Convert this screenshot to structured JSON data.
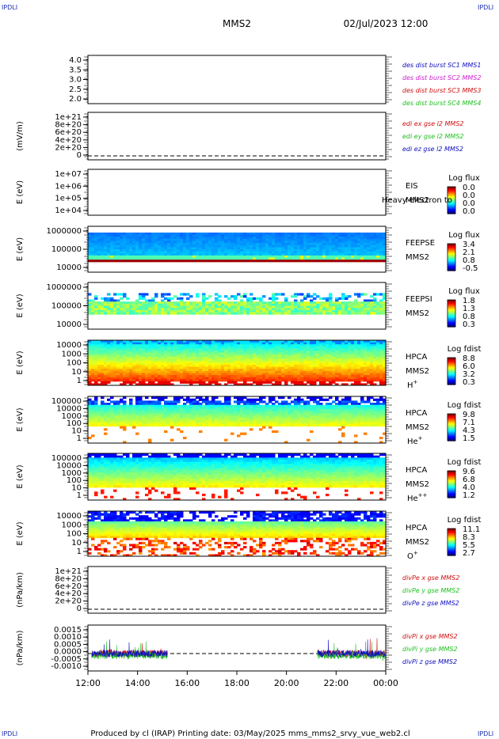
{
  "header": {
    "corner_tl": "IPDLI",
    "corner_tr": "IPDLI",
    "corner_bl": "IPDLI",
    "corner_br": "IPDLI",
    "spacecraft": "MMS2",
    "datetime": "02/Jul/2023 12:00"
  },
  "footer": {
    "produced_by": "Produced by cl (IRAP)",
    "printing_date": "Printing date: 03/May/2025",
    "script_name": "mms_mms2_srvy_vue_web2.cl"
  },
  "time_axis": {
    "ticks": [
      "12:00",
      "14:00",
      "16:00",
      "18:00",
      "20:00",
      "22:00",
      "00:00"
    ]
  },
  "chart_data": [
    {
      "type": "line",
      "panel": "des-dist",
      "ylim": [
        1.8,
        4.15
      ],
      "yticks": [
        "4.0",
        "3.5",
        "3.0",
        "2.5",
        "2.0"
      ],
      "ylabel": "",
      "legend": [
        {
          "label": "des dist burst SC1 MMS1",
          "color": "#1010c0"
        },
        {
          "label": "des dist burst SC2 MMS2",
          "color": "#d020d0"
        },
        {
          "label": "des dist burst SC3 MMS3",
          "color": "#d01010"
        },
        {
          "label": "des dist burst SC4 MMS4",
          "color": "#20c020"
        }
      ],
      "series": []
    },
    {
      "type": "line",
      "panel": "edi-e",
      "ylabel": "(mV/m)",
      "yticks": [
        "1e+21",
        "8e+20",
        "6e+20",
        "4e+20",
        "2e+20",
        "0"
      ],
      "ylim": [
        0,
        1.1e+21
      ],
      "legend": [
        {
          "label": "edi ex gse l2 MMS2",
          "color": "#d01010"
        },
        {
          "label": "edi ey gse l2 MMS2",
          "color": "#20c020"
        },
        {
          "label": "edi ez gse l2 MMS2",
          "color": "#1010c0"
        }
      ],
      "zero_line": true
    },
    {
      "type": "heatmap",
      "panel": "eis",
      "ylabel": "E (eV)",
      "yticks": [
        "1e+07",
        "1e+06",
        "1e+05",
        "1e+04"
      ],
      "log_y": true,
      "labels": [
        "EIS",
        "MMS2"
      ],
      "overlay_text": "Heavy electron to",
      "colorbar": {
        "title": "Log flux",
        "ticks": [
          "0.0",
          "0.0",
          "0.0",
          "0.0"
        ]
      },
      "empty": true
    },
    {
      "type": "heatmap",
      "panel": "feeps-e",
      "ylabel": "E (eV)",
      "yticks": [
        "1000000",
        "100000",
        "10000"
      ],
      "log_y": true,
      "labels": [
        "FEEPSE",
        "MMS2"
      ],
      "colorbar": {
        "title": "Log flux",
        "ticks": [
          "3.4",
          "2.1",
          "0.8",
          "-0.5"
        ]
      }
    },
    {
      "type": "heatmap",
      "panel": "feeps-i",
      "ylabel": "E (eV)",
      "yticks": [
        "1000000",
        "100000",
        "10000"
      ],
      "log_y": true,
      "labels": [
        "FEEPSI",
        "MMS2"
      ],
      "colorbar": {
        "title": "Log flux",
        "ticks": [
          "1.8",
          "1.3",
          "0.8",
          "0.3"
        ]
      }
    },
    {
      "type": "heatmap",
      "panel": "hpca-h",
      "ylabel": "E (eV)",
      "yticks": [
        "10000",
        "1000",
        "100",
        "10",
        "1"
      ],
      "log_y": true,
      "labels": [
        "HPCA",
        "MMS2"
      ],
      "species": "H",
      "species_sup": "+",
      "colorbar": {
        "title": "Log fdist",
        "ticks": [
          "8.8",
          "6.0",
          "3.2",
          "0.3"
        ]
      }
    },
    {
      "type": "heatmap",
      "panel": "hpca-he1",
      "ylabel": "E (eV)",
      "yticks": [
        "100000",
        "10000",
        "1000",
        "100",
        "10",
        "1"
      ],
      "log_y": true,
      "labels": [
        "HPCA",
        "MMS2"
      ],
      "species": "He",
      "species_sup": "+",
      "colorbar": {
        "title": "Log fdist",
        "ticks": [
          "9.8",
          "7.1",
          "4.3",
          "1.5"
        ]
      }
    },
    {
      "type": "heatmap",
      "panel": "hpca-he2",
      "ylabel": "E (eV)",
      "yticks": [
        "100000",
        "10000",
        "1000",
        "100",
        "10",
        "1"
      ],
      "log_y": true,
      "labels": [
        "HPCA",
        "MMS2"
      ],
      "species": "He",
      "species_sup": "++",
      "colorbar": {
        "title": "Log fdist",
        "ticks": [
          "9.6",
          "6.8",
          "4.0",
          "1.2"
        ]
      }
    },
    {
      "type": "heatmap",
      "panel": "hpca-o",
      "ylabel": "E (eV)",
      "yticks": [
        "10000",
        "1000",
        "100",
        "10",
        "1"
      ],
      "log_y": true,
      "labels": [
        "HPCA",
        "MMS2"
      ],
      "species": "O",
      "species_sup": "+",
      "colorbar": {
        "title": "Log fdist",
        "ticks": [
          "11.1",
          "8.3",
          "5.5",
          "2.7"
        ]
      }
    },
    {
      "type": "line",
      "panel": "divpe",
      "ylabel": "(nPa/km)",
      "yticks": [
        "1e+21",
        "8e+20",
        "6e+20",
        "4e+20",
        "2e+20",
        "0"
      ],
      "ylim": [
        0,
        1.1e+21
      ],
      "legend": [
        {
          "label": "divPe x gse MMS2",
          "color": "#d01010"
        },
        {
          "label": "divPe y gse MMS2",
          "color": "#20c020"
        },
        {
          "label": "divPe z gse MMS2",
          "color": "#1010c0"
        }
      ],
      "zero_line": true
    },
    {
      "type": "line",
      "panel": "divpi",
      "ylabel": "(nPa/km)",
      "yticks": [
        "0.0015",
        "0.0010",
        "0.0005",
        "0.0000",
        "-0.0005",
        "-0.0010"
      ],
      "ylim": [
        -0.0011,
        0.0018
      ],
      "legend": [
        {
          "label": "divPi x gse MMS2",
          "color": "#d01010"
        },
        {
          "label": "divPi y gse MMS2",
          "color": "#20c020"
        },
        {
          "label": "divPi z gse MMS2",
          "color": "#1010c0"
        }
      ],
      "zero_line": true,
      "data_intervals_hours": [
        [
          12.15,
          15.2
        ],
        [
          21.25,
          24.0
        ]
      ]
    }
  ]
}
